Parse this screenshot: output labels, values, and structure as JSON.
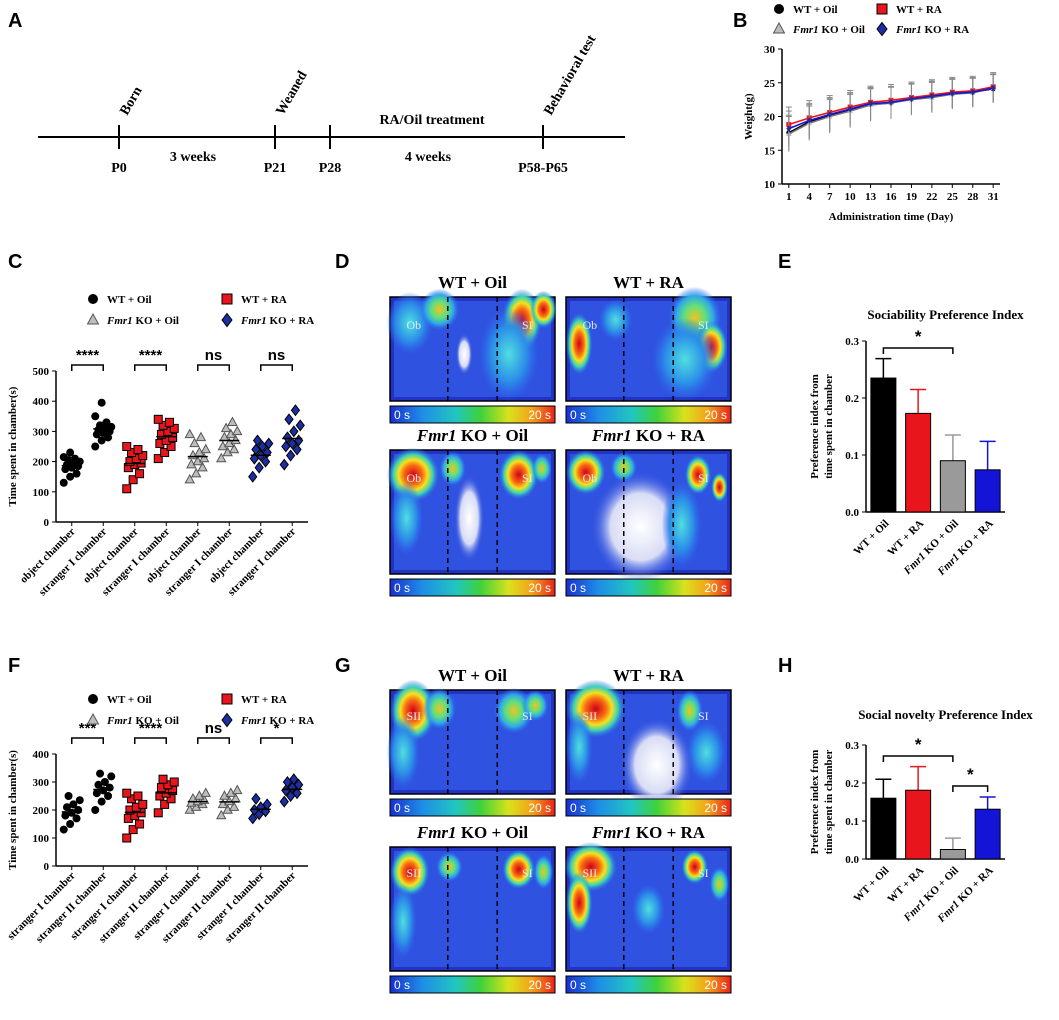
{
  "panel_labels": [
    "A",
    "B",
    "C",
    "D",
    "E",
    "F",
    "G",
    "H"
  ],
  "timeline": {
    "events": [
      {
        "top": "Born",
        "bottom": "P0"
      },
      {
        "top": "Weaned",
        "bottom": "P21"
      },
      {
        "top": "",
        "bottom": "P28"
      },
      {
        "top": "Behavioral test",
        "bottom": "P58-P65"
      }
    ],
    "spans": [
      "3 weeks",
      "4 weeks"
    ],
    "treatment": "RA/Oil treatment"
  },
  "groups": {
    "wt_oil": "WT + Oil",
    "wt_ra": "WT + RA",
    "ko_oil_italic": "Fmr1",
    "ko_oil_rest": " KO + Oil",
    "ko_ra_italic": "Fmr1",
    "ko_ra_rest": " KO + RA"
  },
  "colors": {
    "wt_oil": "#000000",
    "wt_ra": "#e8161c",
    "ko_oil": "#9a9a9a",
    "ko_ra": "#1414d6",
    "ko_ra_marker": "#1c2ea3"
  },
  "heatmaps": {
    "D": {
      "titles": [
        "WT + Oil",
        "WT + RA"
      ],
      "titles2_italic": "Fmr1",
      "titles2_rest": [
        " KO + Oil",
        " KO + RA"
      ],
      "labels": [
        "Ob",
        "SI"
      ],
      "scale": [
        "0 s",
        "20 s"
      ]
    },
    "G": {
      "titles": [
        "WT + Oil",
        "WT + RA"
      ],
      "titles2_italic": "Fmr1",
      "titles2_rest": [
        " KO + Oil",
        " KO + RA"
      ],
      "labels": [
        "SII",
        "SI"
      ],
      "scale": [
        "0 s",
        "20 s"
      ]
    }
  },
  "chart_data": [
    {
      "id": "B",
      "type": "line",
      "xlabel": "Administration time (Day)",
      "ylabel": "Weight(g)",
      "x": [
        1,
        4,
        7,
        10,
        13,
        16,
        19,
        22,
        25,
        28,
        31
      ],
      "ylim": [
        10,
        30
      ],
      "yticks": [
        10,
        15,
        20,
        25,
        30
      ],
      "series": [
        {
          "name": "WT + Oil",
          "values": [
            17.6,
            19.2,
            20.2,
            21.0,
            21.8,
            22.0,
            22.6,
            22.9,
            23.4,
            23.6,
            24.1
          ]
        },
        {
          "name": "WT + RA",
          "values": [
            18.8,
            19.8,
            20.6,
            21.4,
            22.1,
            22.4,
            22.8,
            23.2,
            23.6,
            23.8,
            24.4
          ]
        },
        {
          "name": "Fmr1 KO + Oil",
          "values": [
            17.4,
            19.0,
            20.0,
            20.8,
            21.7,
            22.0,
            22.5,
            22.8,
            23.3,
            23.5,
            24.2
          ]
        },
        {
          "name": "Fmr1 KO + RA",
          "values": [
            18.2,
            19.4,
            20.3,
            21.1,
            21.9,
            22.1,
            22.6,
            23.0,
            23.4,
            23.6,
            24.2
          ]
        }
      ]
    },
    {
      "id": "C",
      "type": "scatter",
      "ylabel": "Time spent in chamber(s)",
      "ylim": [
        0,
        500
      ],
      "yticks": [
        0,
        100,
        200,
        300,
        400,
        500
      ],
      "categories": [
        "object chamber",
        "stranger I chamber",
        "object chamber",
        "stranger I chamber",
        "object chamber",
        "stranger I chamber",
        "object chamber",
        "stranger I chamber"
      ],
      "significance": [
        "****",
        "****",
        "ns",
        "ns"
      ],
      "series": [
        {
          "name": "WT + Oil",
          "values": [
            [
              130,
              150,
              160,
              175,
              180,
              185,
              190,
              195,
              200,
              205,
              210,
              215,
              230
            ],
            [
              250,
              270,
              280,
              290,
              295,
              300,
              305,
              310,
              315,
              320,
              330,
              350,
              395
            ]
          ]
        },
        {
          "name": "WT + RA",
          "values": [
            [
              110,
              140,
              160,
              180,
              190,
              195,
              200,
              210,
              220,
              230,
              240,
              250
            ],
            [
              210,
              230,
              250,
              260,
              270,
              280,
              290,
              300,
              310,
              320,
              330,
              340
            ]
          ]
        },
        {
          "name": "Fmr1 KO + Oil",
          "values": [
            [
              140,
              160,
              180,
              190,
              200,
              210,
              220,
              230,
              240,
              260,
              280,
              290
            ],
            [
              210,
              230,
              240,
              250,
              260,
              270,
              280,
              290,
              300,
              310,
              330
            ]
          ]
        },
        {
          "name": "Fmr1 KO + RA",
          "values": [
            [
              150,
              180,
              200,
              210,
              220,
              230,
              240,
              250,
              260,
              270
            ],
            [
              190,
              220,
              240,
              250,
              260,
              270,
              280,
              300,
              320,
              340,
              370
            ]
          ]
        }
      ]
    },
    {
      "id": "E",
      "type": "bar",
      "title": "Sociability Preference Index",
      "ylabel": "Preference index from time spent in chamber",
      "categories": [
        "WT + Oil",
        "WT + RA",
        "Fmr1 KO + Oil",
        "Fmr1 KO + RA"
      ],
      "values": [
        0.235,
        0.173,
        0.09,
        0.074
      ],
      "errors": [
        0.034,
        0.042,
        0.045,
        0.05
      ],
      "ylim": [
        0,
        0.3
      ],
      "yticks": [
        0.0,
        0.1,
        0.2,
        0.3
      ],
      "significance": [
        "*"
      ]
    },
    {
      "id": "F",
      "type": "scatter",
      "ylabel": "Time spent in chamber(s)",
      "ylim": [
        0,
        400
      ],
      "yticks": [
        0,
        100,
        200,
        300,
        400
      ],
      "categories": [
        "stranger I chamber",
        "stranger II chamber",
        "stranger I chamber",
        "stranger II chamber",
        "stranger I chamber",
        "stranger II chamber",
        "stranger I chamber",
        "stranger II chamber"
      ],
      "significance": [
        "***",
        "****",
        "ns",
        "*"
      ],
      "series": [
        {
          "name": "WT + Oil",
          "values": [
            [
              130,
              150,
              170,
              180,
              190,
              200,
              210,
              220,
              235,
              250
            ],
            [
              200,
              230,
              250,
              260,
              270,
              280,
              290,
              300,
              320,
              330
            ]
          ]
        },
        {
          "name": "WT + RA",
          "values": [
            [
              100,
              130,
              150,
              170,
              180,
              190,
              200,
              210,
              220,
              240,
              250,
              260
            ],
            [
              190,
              220,
              240,
              250,
              260,
              270,
              280,
              290,
              300,
              310
            ]
          ]
        },
        {
          "name": "Fmr1 KO + Oil",
          "values": [
            [
              200,
              210,
              220,
              225,
              230,
              235,
              240,
              250,
              260
            ],
            [
              180,
              200,
              210,
              220,
              230,
              240,
              250,
              260,
              270
            ]
          ]
        },
        {
          "name": "Fmr1 KO + RA",
          "values": [
            [
              170,
              185,
              195,
              200,
              210,
              220,
              240
            ],
            [
              230,
              250,
              260,
              270,
              280,
              290,
              300,
              310
            ]
          ]
        }
      ]
    },
    {
      "id": "H",
      "type": "bar",
      "title": "Social novelty Preference Index",
      "ylabel": "Preference index from time spent in chamber",
      "categories": [
        "WT + Oil",
        "WT + RA",
        "Fmr1 KO + Oil",
        "Fmr1 KO + RA"
      ],
      "values": [
        0.16,
        0.181,
        0.025,
        0.131
      ],
      "errors": [
        0.05,
        0.062,
        0.03,
        0.032
      ],
      "ylim": [
        0,
        0.3
      ],
      "yticks": [
        0.0,
        0.1,
        0.2,
        0.3
      ],
      "significance": [
        "*",
        "*"
      ]
    }
  ]
}
